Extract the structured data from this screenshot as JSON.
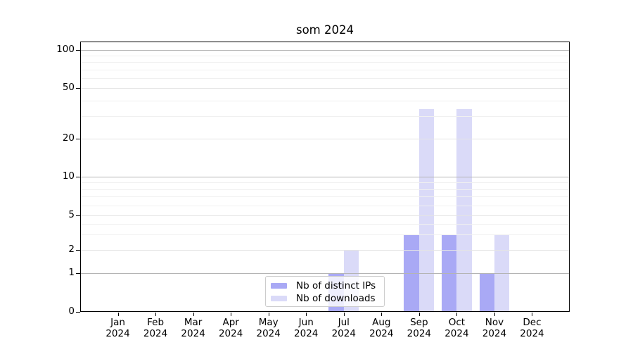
{
  "title": "som 2024",
  "chart_data": {
    "type": "bar",
    "title": "som 2024",
    "yscale": "symlog",
    "ylim": [
      0,
      100
    ],
    "yticks": [
      0,
      1,
      2,
      5,
      10,
      20,
      50,
      100
    ],
    "minor_yticks": [
      3,
      4,
      6,
      7,
      8,
      9,
      30,
      40,
      60,
      70,
      80,
      90
    ],
    "grid": true,
    "legend_position": "lower center",
    "categories": [
      {
        "month": "Jan",
        "year": "2024"
      },
      {
        "month": "Feb",
        "year": "2024"
      },
      {
        "month": "Mar",
        "year": "2024"
      },
      {
        "month": "Apr",
        "year": "2024"
      },
      {
        "month": "May",
        "year": "2024"
      },
      {
        "month": "Jun",
        "year": "2024"
      },
      {
        "month": "Jul",
        "year": "2024"
      },
      {
        "month": "Aug",
        "year": "2024"
      },
      {
        "month": "Sep",
        "year": "2024"
      },
      {
        "month": "Oct",
        "year": "2024"
      },
      {
        "month": "Nov",
        "year": "2024"
      },
      {
        "month": "Dec",
        "year": "2024"
      }
    ],
    "series": [
      {
        "name": "Nb of distinct IPs",
        "color": "#a9a9f5",
        "values": [
          0,
          0,
          0,
          0,
          0,
          0,
          1,
          0,
          3,
          3,
          1,
          0
        ]
      },
      {
        "name": "Nb of downloads",
        "color": "#dadaf8",
        "values": [
          0,
          0,
          0,
          0,
          0,
          0,
          2,
          0,
          34,
          34,
          3,
          0
        ]
      }
    ],
    "colors": {
      "grid_major_power10": "#b4b4b4",
      "grid_major": "#e4e4e4",
      "grid_minor": "#f0f0f0",
      "spine": "#000000",
      "background": "#ffffff"
    }
  }
}
